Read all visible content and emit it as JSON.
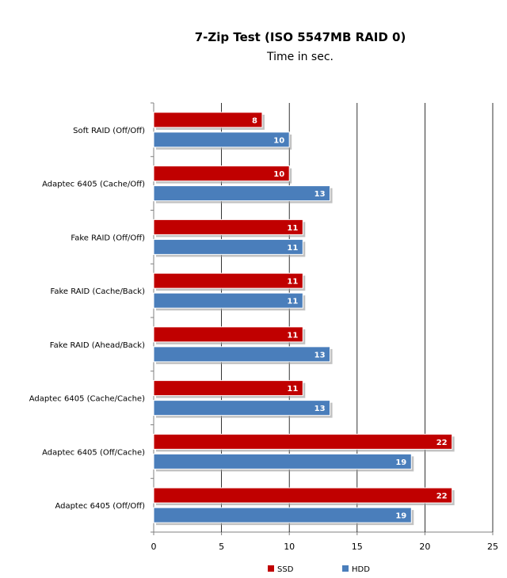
{
  "chart_data": {
    "type": "bar",
    "orientation": "horizontal",
    "title": "7-Zip Test (ISO 5547MB RAID 0)",
    "subtitle": "Time in sec.",
    "xlabel": "",
    "ylabel": "",
    "xlim": [
      0,
      25
    ],
    "ticks": [
      0,
      5,
      10,
      15,
      20,
      25
    ],
    "grid": "vertical",
    "legend_position": "bottom",
    "categories": [
      "Soft RAID (Off/Off)",
      "Adaptec 6405 (Cache/Off)",
      "Fake RAID (Off/Off)",
      "Fake RAID (Cache/Back)",
      "Fake RAID (Ahead/Back)",
      "Adaptec 6405 (Cache/Cache)",
      "Adaptec 6405 (Off/Cache)",
      "Adaptec 6405 (Off/Off)"
    ],
    "series": [
      {
        "name": "SSD",
        "color": "#c00000",
        "values": [
          8,
          10,
          11,
          11,
          11,
          11,
          22,
          22
        ]
      },
      {
        "name": "HDD",
        "color": "#4a7ebb",
        "values": [
          10,
          13,
          11,
          11,
          13,
          13,
          19,
          19
        ]
      }
    ]
  }
}
